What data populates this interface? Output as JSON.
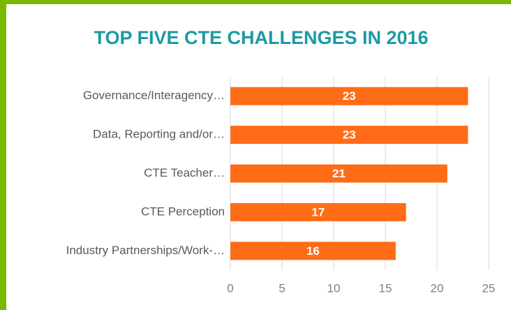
{
  "chart_data": {
    "type": "bar",
    "orientation": "horizontal",
    "title": "TOP FIVE CTE CHALLENGES IN 2016",
    "categories": [
      "Governance/Interagency…",
      "Data, Reporting and/or…",
      "CTE Teacher…",
      "CTE Perception",
      "Industry Partnerships/Work-…"
    ],
    "values": [
      23,
      23,
      21,
      17,
      16
    ],
    "color": "#ff6c17",
    "xlim": [
      0,
      25
    ],
    "xticks": [
      0,
      5,
      10,
      15,
      20,
      25
    ],
    "grid": true
  }
}
